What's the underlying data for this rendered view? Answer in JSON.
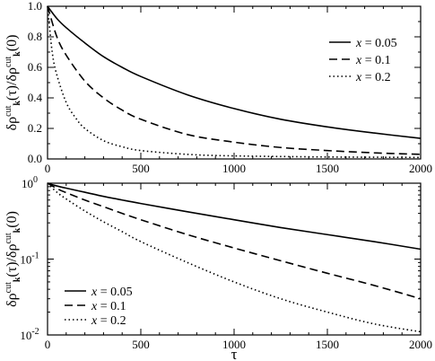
{
  "chart_data": [
    {
      "type": "line",
      "yscale": "linear",
      "xlim": [
        0,
        2000
      ],
      "ylim": [
        0,
        1.0
      ],
      "xticks": [
        0,
        500,
        1000,
        1500,
        2000
      ],
      "yticks": [
        0,
        0.2,
        0.4,
        0.6,
        0.8,
        1.0
      ],
      "ytick_labels": [
        "0.0",
        "0.2",
        "0.4",
        "0.6",
        "0.8",
        "1.0"
      ],
      "xlabel": "",
      "ylabel": "δρ_k^cut(τ)/δρ_k^cut(0)",
      "legend_position": "top-right",
      "grid": false,
      "series": [
        {
          "name": "x = 0.05",
          "style": "solid",
          "x": [
            0,
            50,
            100,
            200,
            300,
            400,
            500,
            750,
            1000,
            1250,
            1500,
            1750,
            2000
          ],
          "values": [
            1.0,
            0.92,
            0.86,
            0.76,
            0.67,
            0.6,
            0.54,
            0.42,
            0.33,
            0.26,
            0.21,
            0.17,
            0.135
          ]
        },
        {
          "name": "x = 0.1",
          "style": "dashed",
          "x": [
            0,
            50,
            100,
            200,
            300,
            400,
            500,
            750,
            1000,
            1250,
            1500,
            1750,
            2000
          ],
          "values": [
            1.0,
            0.8,
            0.68,
            0.51,
            0.4,
            0.32,
            0.26,
            0.16,
            0.11,
            0.075,
            0.055,
            0.04,
            0.03
          ]
        },
        {
          "name": "x = 0.2",
          "style": "dotted",
          "x": [
            0,
            25,
            50,
            100,
            150,
            200,
            300,
            400,
            500,
            750,
            1000,
            1500,
            2000
          ],
          "values": [
            1.0,
            0.7,
            0.55,
            0.37,
            0.27,
            0.2,
            0.12,
            0.08,
            0.055,
            0.03,
            0.02,
            0.013,
            0.01
          ]
        }
      ]
    },
    {
      "type": "line",
      "yscale": "log",
      "xlim": [
        0,
        2000
      ],
      "ylim": [
        0.01,
        1
      ],
      "xticks": [
        0,
        500,
        1000,
        1500,
        2000
      ],
      "yticks": [
        0.01,
        0.1,
        1
      ],
      "xlabel": "τ",
      "ylabel": "δρ_k^cut(τ)/δρ_k^cut(0)",
      "legend_position": "bottom-left",
      "grid": false,
      "series": [
        {
          "name": "x = 0.05",
          "style": "solid",
          "x": [
            0,
            50,
            100,
            200,
            300,
            400,
            500,
            750,
            1000,
            1250,
            1500,
            1750,
            2000
          ],
          "values": [
            1.0,
            0.92,
            0.86,
            0.76,
            0.67,
            0.6,
            0.54,
            0.42,
            0.33,
            0.26,
            0.21,
            0.17,
            0.135
          ]
        },
        {
          "name": "x = 0.1",
          "style": "dashed",
          "x": [
            0,
            50,
            100,
            200,
            300,
            400,
            500,
            750,
            1000,
            1250,
            1500,
            1750,
            2000
          ],
          "values": [
            1.0,
            0.85,
            0.75,
            0.6,
            0.49,
            0.4,
            0.33,
            0.21,
            0.14,
            0.095,
            0.065,
            0.045,
            0.03
          ]
        },
        {
          "name": "x = 0.2",
          "style": "dotted",
          "x": [
            0,
            50,
            100,
            200,
            300,
            400,
            500,
            750,
            1000,
            1250,
            1500,
            1750,
            2000
          ],
          "values": [
            1.0,
            0.76,
            0.62,
            0.43,
            0.31,
            0.23,
            0.17,
            0.09,
            0.05,
            0.03,
            0.02,
            0.014,
            0.011
          ]
        }
      ]
    }
  ]
}
